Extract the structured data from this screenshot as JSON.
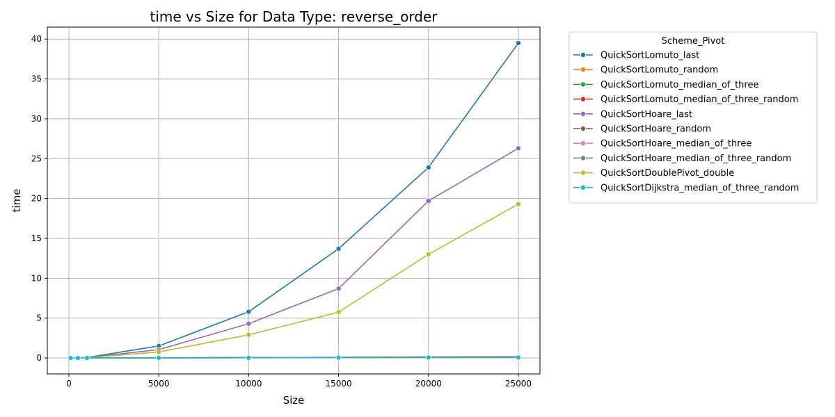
{
  "chart_data": {
    "type": "line",
    "title": "time vs Size for Data Type: reverse_order",
    "xlabel": "Size",
    "ylabel": "time",
    "xlim": [
      -1200,
      26200
    ],
    "ylim": [
      -2,
      41.5
    ],
    "xticks": [
      0,
      5000,
      10000,
      15000,
      20000,
      25000
    ],
    "yticks": [
      0,
      5,
      10,
      15,
      20,
      25,
      30,
      35,
      40
    ],
    "grid": true,
    "legend_title": "Scheme_Pivot",
    "legend_position": "outside-top-right",
    "series": [
      {
        "name": "QuickSortLomuto_last",
        "color": "#1f77b4",
        "x": [
          100,
          500,
          1000,
          5000,
          10000,
          15000,
          20000,
          25000
        ],
        "y": [
          0.0,
          0.02,
          0.06,
          1.5,
          5.8,
          13.7,
          23.9,
          39.5
        ]
      },
      {
        "name": "QuickSortLomuto_random",
        "color": "#ff7f0e",
        "x": [
          100,
          500,
          1000,
          5000,
          10000,
          15000,
          20000,
          25000
        ],
        "y": [
          0.0,
          0.0,
          0.0,
          0.02,
          0.05,
          0.08,
          0.11,
          0.14
        ]
      },
      {
        "name": "QuickSortLomuto_median_of_three",
        "color": "#2ca02c",
        "x": [
          100,
          500,
          1000,
          5000,
          10000,
          15000,
          20000,
          25000
        ],
        "y": [
          0.0,
          0.0,
          0.0,
          0.02,
          0.05,
          0.08,
          0.12,
          0.15
        ]
      },
      {
        "name": "QuickSortLomuto_median_of_three_random",
        "color": "#d62728",
        "x": [
          100,
          500,
          1000,
          5000,
          10000,
          15000,
          20000,
          25000
        ],
        "y": [
          0.0,
          0.0,
          0.0,
          0.02,
          0.05,
          0.08,
          0.12,
          0.15
        ]
      },
      {
        "name": "QuickSortHoare_last",
        "color": "#9467bd",
        "x": [
          100,
          500,
          1000,
          5000,
          10000,
          15000,
          20000,
          25000
        ],
        "y": [
          0.0,
          0.01,
          0.04,
          1.05,
          4.3,
          8.7,
          19.7,
          26.3
        ]
      },
      {
        "name": "QuickSortHoare_random",
        "color": "#8c564b",
        "x": [
          100,
          500,
          1000,
          5000,
          10000,
          15000,
          20000,
          25000
        ],
        "y": [
          0.0,
          0.0,
          0.0,
          0.01,
          0.03,
          0.05,
          0.07,
          0.09
        ]
      },
      {
        "name": "QuickSortHoare_median_of_three",
        "color": "#e377c2",
        "x": [
          100,
          500,
          1000,
          5000,
          10000,
          15000,
          20000,
          25000
        ],
        "y": [
          0.0,
          0.0,
          0.0,
          0.01,
          0.03,
          0.05,
          0.07,
          0.09
        ]
      },
      {
        "name": "QuickSortHoare_median_of_three_random",
        "color": "#7f7f7f",
        "x": [
          100,
          500,
          1000,
          5000,
          10000,
          15000,
          20000,
          25000
        ],
        "y": [
          0.0,
          0.0,
          0.0,
          0.01,
          0.03,
          0.05,
          0.07,
          0.09
        ]
      },
      {
        "name": "QuickSortDoublePivot_double",
        "color": "#bcbd22",
        "x": [
          100,
          500,
          1000,
          5000,
          10000,
          15000,
          20000,
          25000
        ],
        "y": [
          0.0,
          0.01,
          0.03,
          0.75,
          2.9,
          5.75,
          13.0,
          19.3
        ]
      },
      {
        "name": "QuickSortDijkstra_median_of_three_random",
        "color": "#17becf",
        "x": [
          100,
          500,
          1000,
          5000,
          10000,
          15000,
          20000,
          25000
        ],
        "y": [
          0.0,
          0.0,
          0.0,
          0.02,
          0.02,
          0.05,
          0.06,
          0.07
        ]
      }
    ]
  }
}
